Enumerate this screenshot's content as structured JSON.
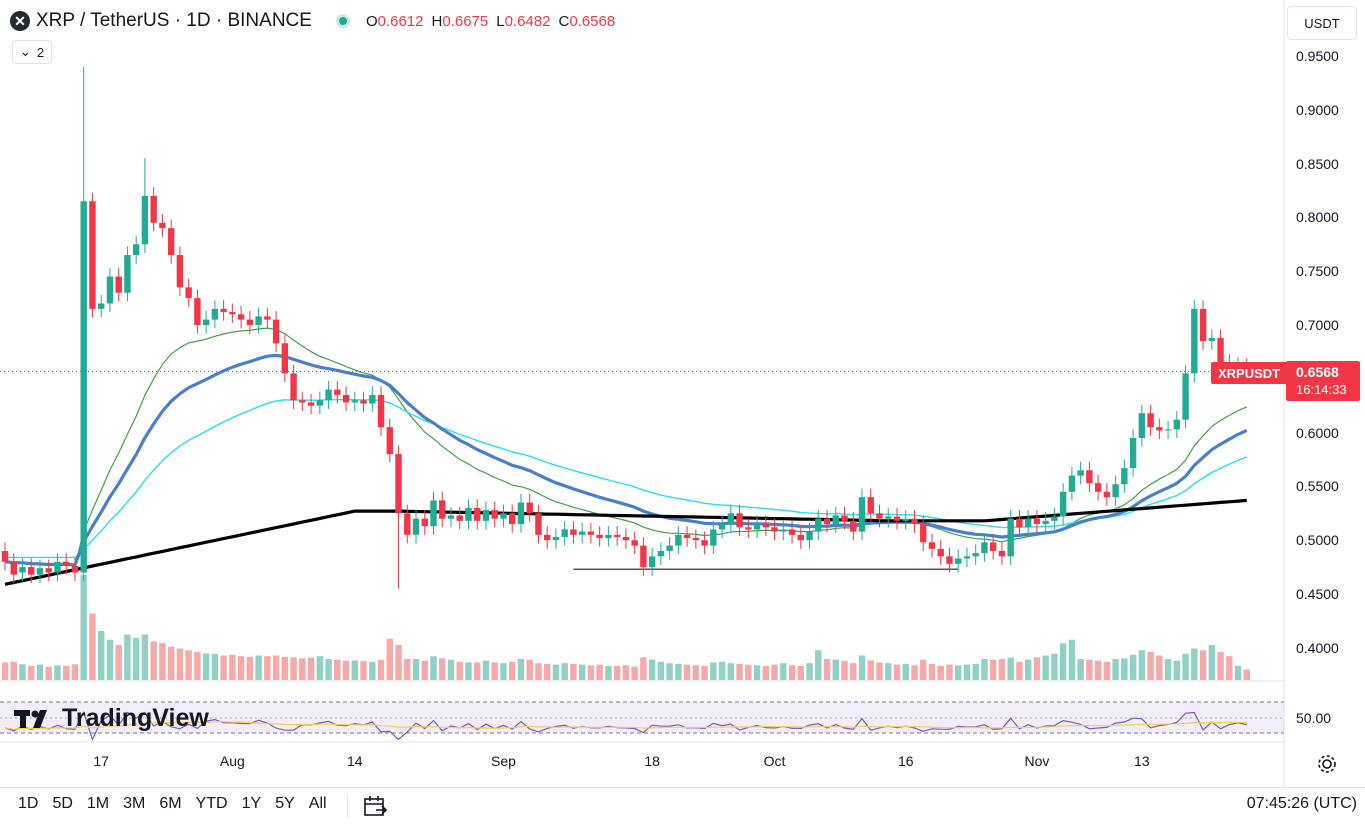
{
  "header": {
    "symbol": "XRP / TetherUS · 1D · BINANCE",
    "ohlc": [
      {
        "k": "O",
        "v": "0.6612"
      },
      {
        "k": "H",
        "v": "0.6675"
      },
      {
        "k": "L",
        "v": "0.6482"
      },
      {
        "k": "C",
        "v": "0.6568"
      }
    ],
    "collapse_count": "2",
    "currency": "USDT"
  },
  "price_tag": {
    "name": "XRPUSDT",
    "price": "0.6568",
    "countdown": "16:14:33",
    "color": "#f23645"
  },
  "rsi_level": "50.00",
  "brand": "TradingView",
  "bottom": {
    "ranges": [
      "1D",
      "5D",
      "1M",
      "3M",
      "6M",
      "YTD",
      "1Y",
      "5Y",
      "All"
    ],
    "time": "07:45:26 (UTC)"
  },
  "colors": {
    "up": "#22ab94",
    "down": "#f23645",
    "vol_up": "#8fd1c4",
    "vol_down": "#f7a9a7",
    "ma_thin": "#43a047",
    "ma_blue": "#4a7fcc",
    "ma_cyan": "#26e0f0",
    "ma_black": "#000000",
    "rsi_line": "#7e57c2",
    "rsi_ma": "#f2d24b"
  },
  "chart_data": {
    "type": "candlestick",
    "ylim": [
      0.38,
      0.97
    ],
    "y_ticks": [
      "0.9500",
      "0.9000",
      "0.8500",
      "0.8000",
      "0.7500",
      "0.7000",
      "0.6500",
      "0.6000",
      "0.5500",
      "0.5000",
      "0.4500",
      "0.4000"
    ],
    "x_labels": [
      "17",
      "Aug",
      "14",
      "Sep",
      "18",
      "Oct",
      "16",
      "Nov",
      "13"
    ],
    "support_level": 0.473,
    "candles": [
      [
        0.49,
        0.48
      ],
      [
        0.48,
        0.468
      ],
      [
        0.47,
        0.475
      ],
      [
        0.475,
        0.468
      ],
      [
        0.468,
        0.474
      ],
      [
        0.474,
        0.47
      ],
      [
        0.47,
        0.48
      ],
      [
        0.48,
        0.476
      ],
      [
        0.476,
        0.47
      ],
      [
        0.47,
        0.815
      ],
      [
        0.815,
        0.715
      ],
      [
        0.715,
        0.72
      ],
      [
        0.72,
        0.745
      ],
      [
        0.745,
        0.73
      ],
      [
        0.73,
        0.765
      ],
      [
        0.765,
        0.775
      ],
      [
        0.775,
        0.82
      ],
      [
        0.82,
        0.795
      ],
      [
        0.795,
        0.79
      ],
      [
        0.79,
        0.765
      ],
      [
        0.765,
        0.735
      ],
      [
        0.735,
        0.725
      ],
      [
        0.725,
        0.7
      ],
      [
        0.7,
        0.705
      ],
      [
        0.705,
        0.715
      ],
      [
        0.715,
        0.712
      ],
      [
        0.712,
        0.71
      ],
      [
        0.71,
        0.705
      ],
      [
        0.705,
        0.7
      ],
      [
        0.7,
        0.708
      ],
      [
        0.708,
        0.705
      ],
      [
        0.705,
        0.683
      ],
      [
        0.683,
        0.655
      ],
      [
        0.655,
        0.63
      ],
      [
        0.63,
        0.628
      ],
      [
        0.628,
        0.625
      ],
      [
        0.625,
        0.63
      ],
      [
        0.63,
        0.64
      ],
      [
        0.64,
        0.635
      ],
      [
        0.635,
        0.628
      ],
      [
        0.628,
        0.63
      ],
      [
        0.63,
        0.627
      ],
      [
        0.627,
        0.635
      ],
      [
        0.635,
        0.605
      ],
      [
        0.605,
        0.58
      ],
      [
        0.58,
        0.525
      ],
      [
        0.525,
        0.505
      ],
      [
        0.505,
        0.52
      ],
      [
        0.52,
        0.513
      ],
      [
        0.513,
        0.537
      ],
      [
        0.537,
        0.52
      ],
      [
        0.52,
        0.523
      ],
      [
        0.523,
        0.518
      ],
      [
        0.518,
        0.53
      ],
      [
        0.53,
        0.518
      ],
      [
        0.518,
        0.528
      ],
      [
        0.528,
        0.52
      ],
      [
        0.52,
        0.525
      ],
      [
        0.525,
        0.515
      ],
      [
        0.515,
        0.535
      ],
      [
        0.535,
        0.525
      ],
      [
        0.525,
        0.505
      ],
      [
        0.505,
        0.5
      ],
      [
        0.5,
        0.503
      ],
      [
        0.503,
        0.51
      ],
      [
        0.51,
        0.505
      ],
      [
        0.505,
        0.508
      ],
      [
        0.508,
        0.505
      ],
      [
        0.505,
        0.502
      ],
      [
        0.502,
        0.505
      ],
      [
        0.505,
        0.503
      ],
      [
        0.503,
        0.5
      ],
      [
        0.5,
        0.495
      ],
      [
        0.495,
        0.475
      ],
      [
        0.475,
        0.485
      ],
      [
        0.485,
        0.49
      ],
      [
        0.49,
        0.495
      ],
      [
        0.495,
        0.505
      ],
      [
        0.505,
        0.502
      ],
      [
        0.502,
        0.5
      ],
      [
        0.5,
        0.495
      ],
      [
        0.495,
        0.51
      ],
      [
        0.51,
        0.515
      ],
      [
        0.515,
        0.525
      ],
      [
        0.525,
        0.512
      ],
      [
        0.512,
        0.51
      ],
      [
        0.51,
        0.515
      ],
      [
        0.515,
        0.512
      ],
      [
        0.512,
        0.508
      ],
      [
        0.508,
        0.51
      ],
      [
        0.51,
        0.505
      ],
      [
        0.505,
        0.5
      ],
      [
        0.5,
        0.508
      ],
      [
        0.508,
        0.52
      ],
      [
        0.52,
        0.515
      ],
      [
        0.515,
        0.523
      ],
      [
        0.523,
        0.518
      ],
      [
        0.518,
        0.508
      ],
      [
        0.508,
        0.54
      ],
      [
        0.54,
        0.525
      ],
      [
        0.525,
        0.52
      ],
      [
        0.52,
        0.522
      ],
      [
        0.522,
        0.518
      ],
      [
        0.518,
        0.52
      ],
      [
        0.52,
        0.515
      ],
      [
        0.515,
        0.498
      ],
      [
        0.498,
        0.492
      ],
      [
        0.492,
        0.485
      ],
      [
        0.485,
        0.478
      ],
      [
        0.478,
        0.483
      ],
      [
        0.483,
        0.485
      ],
      [
        0.485,
        0.488
      ],
      [
        0.488,
        0.498
      ],
      [
        0.498,
        0.49
      ],
      [
        0.49,
        0.485
      ],
      [
        0.485,
        0.52
      ],
      [
        0.52,
        0.512
      ],
      [
        0.512,
        0.52
      ],
      [
        0.52,
        0.515
      ],
      [
        0.515,
        0.518
      ],
      [
        0.518,
        0.522
      ],
      [
        0.522,
        0.545
      ],
      [
        0.545,
        0.56
      ],
      [
        0.56,
        0.565
      ],
      [
        0.565,
        0.553
      ],
      [
        0.553,
        0.545
      ],
      [
        0.545,
        0.54
      ],
      [
        0.54,
        0.552
      ],
      [
        0.552,
        0.567
      ],
      [
        0.567,
        0.595
      ],
      [
        0.595,
        0.618
      ],
      [
        0.618,
        0.605
      ],
      [
        0.605,
        0.602
      ],
      [
        0.602,
        0.603
      ],
      [
        0.603,
        0.612
      ],
      [
        0.612,
        0.655
      ],
      [
        0.655,
        0.715
      ],
      [
        0.715,
        0.685
      ],
      [
        0.685,
        0.688
      ],
      [
        0.688,
        0.665
      ],
      [
        0.665,
        0.66
      ],
      [
        0.66,
        0.662
      ],
      [
        0.661,
        0.657
      ]
    ],
    "volume": [
      50,
      52,
      45,
      40,
      44,
      38,
      42,
      40,
      45,
      300,
      190,
      140,
      115,
      100,
      130,
      120,
      130,
      110,
      105,
      95,
      90,
      85,
      80,
      76,
      74,
      70,
      72,
      68,
      66,
      70,
      68,
      70,
      66,
      65,
      62,
      64,
      68,
      60,
      58,
      55,
      56,
      54,
      52,
      58,
      118,
      100,
      60,
      60,
      55,
      68,
      62,
      58,
      52,
      50,
      50,
      55,
      50,
      48,
      52,
      60,
      58,
      48,
      46,
      44,
      48,
      46,
      44,
      42,
      44,
      40,
      40,
      42,
      38,
      65,
      58,
      52,
      48,
      46,
      44,
      42,
      40,
      50,
      52,
      48,
      46,
      44,
      42,
      40,
      44,
      48,
      42,
      40,
      48,
      85,
      60,
      58,
      55,
      48,
      70,
      56,
      50,
      48,
      44,
      46,
      42,
      58,
      46,
      40,
      44,
      42,
      44,
      46,
      60,
      58,
      60,
      64,
      52,
      58,
      65,
      70,
      75,
      105,
      115,
      60,
      58,
      55,
      52,
      60,
      62,
      72,
      85,
      80,
      70,
      60,
      55,
      75,
      90,
      85,
      100,
      80,
      68,
      40,
      30
    ]
  }
}
